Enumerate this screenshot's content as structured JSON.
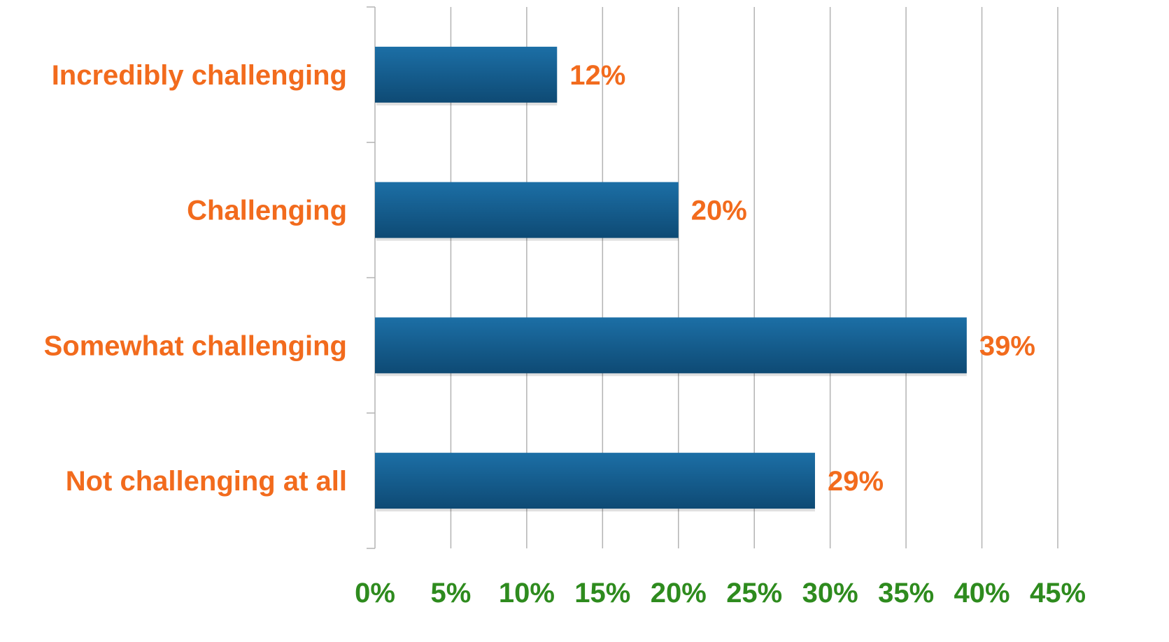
{
  "chart_data": {
    "type": "bar",
    "orientation": "horizontal",
    "categories": [
      "Incredibly challenging",
      "Challenging",
      "Somewhat challenging",
      "Not challenging at all"
    ],
    "values": [
      12,
      20,
      39,
      29
    ],
    "data_labels": [
      "12%",
      "20%",
      "39%",
      "29%"
    ],
    "x_ticks": [
      "0%",
      "5%",
      "10%",
      "15%",
      "20%",
      "25%",
      "30%",
      "35%",
      "40%",
      "45%"
    ],
    "xlim": [
      0,
      45
    ],
    "title": "",
    "xlabel": "",
    "ylabel": "",
    "grid": true,
    "legend": "none",
    "colors": {
      "bar_top": "#1c6fa6",
      "bar_bottom": "#0e4a74",
      "category_labels": "#f26b1d",
      "data_labels": "#f26b1d",
      "tick_labels": "#2e8b1e",
      "grid": "#b3b3b3"
    }
  }
}
